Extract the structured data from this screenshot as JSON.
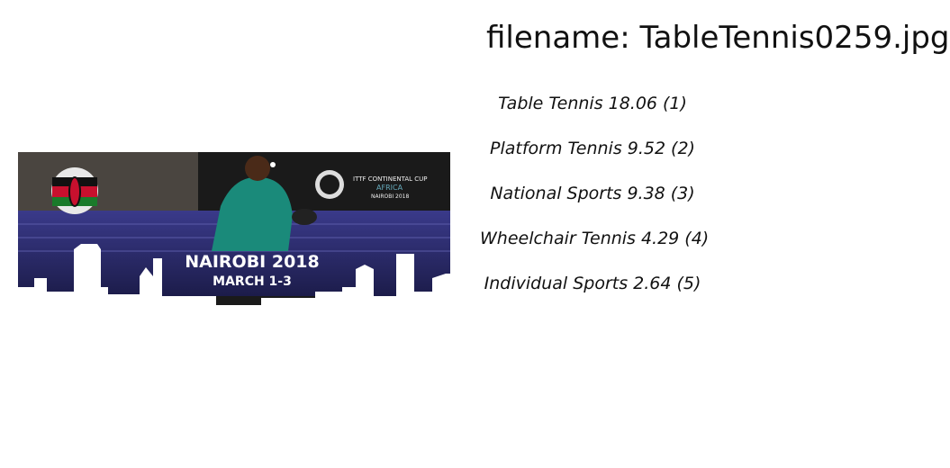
{
  "header": {
    "filename": "filename: TableTennis0259.jpg"
  },
  "image": {
    "texts": {
      "city": "NAIROBI 2018",
      "dates": "MARCH 1-3",
      "event_line1": "ITTF CONTINENTAL CUP",
      "event_line2": "AFRICA",
      "event_line3": "NAIROBI 2018"
    }
  },
  "predictions": [
    {
      "label": "Table Tennis",
      "score": 18.06,
      "rank": "(1)"
    },
    {
      "label": "Platform Tennis",
      "score": 9.52,
      "rank": "(2)"
    },
    {
      "label": "National Sports",
      "score": 9.38,
      "rank": "(3)"
    },
    {
      "label": "Wheelchair Tennis",
      "score": 4.29,
      "rank": "(4)"
    },
    {
      "label": "Individual Sports",
      "score": 2.64,
      "rank": "(5)"
    }
  ]
}
